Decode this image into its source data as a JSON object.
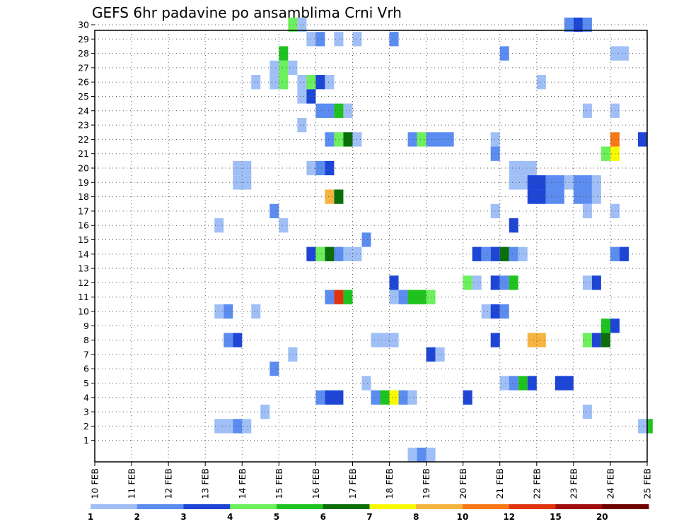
{
  "chart_data": {
    "type": "heatmap",
    "title": "GEFS 6hr padavine po ansamblima Crni Vrh",
    "xlabel": "",
    "ylabel": "",
    "x_ticks": [
      "10 FEB",
      "11 FEB",
      "12 FEB",
      "13 FEB",
      "14 FEB",
      "15 FEB",
      "16 FEB",
      "17 FEB",
      "18 FEB",
      "19 FEB",
      "20 FEB",
      "21 FEB",
      "22 FEB",
      "23 FEB",
      "24 FEB",
      "25 FEB"
    ],
    "y_ticks": [
      "1",
      "2",
      "3",
      "4",
      "5",
      "6",
      "7",
      "8",
      "9",
      "10",
      "11",
      "12",
      "13",
      "14",
      "15",
      "16",
      "17",
      "18",
      "19",
      "20",
      "21",
      "22",
      "23",
      "24",
      "25",
      "26",
      "27",
      "28",
      "29",
      "30"
    ],
    "x_range_days": [
      0,
      15
    ],
    "y_range": [
      0,
      30
    ],
    "grid": true,
    "legend": {
      "placement": "bottom",
      "labels": [
        "1",
        "2",
        "3",
        "4",
        "5",
        "6",
        "7",
        "8",
        "10",
        "12",
        "15",
        "20"
      ],
      "colors": [
        "#a0bff7",
        "#5b8cf0",
        "#1e46d6",
        "#6cf05c",
        "#1fc31f",
        "#0b6e0b",
        "#f8f800",
        "#f8b440",
        "#f87818",
        "#e0340f",
        "#a00c0c",
        "#6e0000"
      ]
    },
    "level_colors": {
      "1": "#a0bff7",
      "2": "#5b8cf0",
      "3": "#1e46d6",
      "4": "#6cf05c",
      "5": "#1fc31f",
      "6": "#0b6e0b",
      "7": "#f8f800",
      "8": "#f8b440",
      "9": "#f87818",
      "10": "#e0340f"
    },
    "cells": [
      {
        "y": 30,
        "x": 5.25,
        "w": 0.25,
        "l": 4
      },
      {
        "y": 30,
        "x": 5.5,
        "w": 0.25,
        "l": 1
      },
      {
        "y": 30,
        "x": 12.75,
        "w": 0.25,
        "l": 2
      },
      {
        "y": 30,
        "x": 13.0,
        "w": 0.25,
        "l": 3
      },
      {
        "y": 30,
        "x": 13.25,
        "w": 0.25,
        "l": 2
      },
      {
        "y": 29,
        "x": 5.75,
        "w": 0.25,
        "l": 1
      },
      {
        "y": 29,
        "x": 6.0,
        "w": 0.25,
        "l": 2
      },
      {
        "y": 29,
        "x": 6.5,
        "w": 0.25,
        "l": 1
      },
      {
        "y": 29,
        "x": 7.0,
        "w": 0.25,
        "l": 1
      },
      {
        "y": 29,
        "x": 8.0,
        "w": 0.25,
        "l": 2
      },
      {
        "y": 28,
        "x": 5.0,
        "w": 0.25,
        "l": 5
      },
      {
        "y": 28,
        "x": 11.0,
        "w": 0.25,
        "l": 2
      },
      {
        "y": 28,
        "x": 14.0,
        "w": 0.5,
        "l": 1
      },
      {
        "y": 27,
        "x": 4.75,
        "w": 0.25,
        "l": 1
      },
      {
        "y": 27,
        "x": 5.0,
        "w": 0.25,
        "l": 4
      },
      {
        "y": 27,
        "x": 5.25,
        "w": 0.25,
        "l": 1
      },
      {
        "y": 26,
        "x": 4.25,
        "w": 0.25,
        "l": 1
      },
      {
        "y": 26,
        "x": 4.75,
        "w": 0.25,
        "l": 1
      },
      {
        "y": 26,
        "x": 5.0,
        "w": 0.25,
        "l": 4
      },
      {
        "y": 26,
        "x": 5.5,
        "w": 0.25,
        "l": 1
      },
      {
        "y": 26,
        "x": 5.75,
        "w": 0.25,
        "l": 4
      },
      {
        "y": 26,
        "x": 6.0,
        "w": 0.25,
        "l": 3
      },
      {
        "y": 26,
        "x": 6.25,
        "w": 0.25,
        "l": 1
      },
      {
        "y": 26,
        "x": 12.0,
        "w": 0.25,
        "l": 1
      },
      {
        "y": 25,
        "x": 5.5,
        "w": 0.25,
        "l": 1
      },
      {
        "y": 25,
        "x": 5.75,
        "w": 0.25,
        "l": 3
      },
      {
        "y": 24,
        "x": 6.0,
        "w": 0.5,
        "l": 2
      },
      {
        "y": 24,
        "x": 6.5,
        "w": 0.25,
        "l": 5
      },
      {
        "y": 24,
        "x": 6.75,
        "w": 0.25,
        "l": 1
      },
      {
        "y": 24,
        "x": 13.25,
        "w": 0.25,
        "l": 1
      },
      {
        "y": 24,
        "x": 14.0,
        "w": 0.25,
        "l": 1
      },
      {
        "y": 23,
        "x": 5.5,
        "w": 0.25,
        "l": 1
      },
      {
        "y": 22,
        "x": 6.25,
        "w": 0.25,
        "l": 2
      },
      {
        "y": 22,
        "x": 6.5,
        "w": 0.25,
        "l": 4
      },
      {
        "y": 22,
        "x": 6.75,
        "w": 0.25,
        "l": 6
      },
      {
        "y": 22,
        "x": 7.0,
        "w": 0.25,
        "l": 1
      },
      {
        "y": 22,
        "x": 8.5,
        "w": 0.25,
        "l": 2
      },
      {
        "y": 22,
        "x": 8.75,
        "w": 0.25,
        "l": 4
      },
      {
        "y": 22,
        "x": 9.0,
        "w": 0.75,
        "l": 2
      },
      {
        "y": 22,
        "x": 10.75,
        "w": 0.25,
        "l": 1
      },
      {
        "y": 22,
        "x": 14.0,
        "w": 0.25,
        "l": 9
      },
      {
        "y": 22,
        "x": 14.75,
        "w": 0.25,
        "l": 3
      },
      {
        "y": 21,
        "x": 10.75,
        "w": 0.25,
        "l": 2
      },
      {
        "y": 21,
        "x": 13.75,
        "w": 0.25,
        "l": 4
      },
      {
        "y": 21,
        "x": 14.0,
        "w": 0.25,
        "l": 7
      },
      {
        "y": 20,
        "x": 3.75,
        "w": 0.5,
        "l": 1
      },
      {
        "y": 20,
        "x": 5.75,
        "w": 0.25,
        "l": 1
      },
      {
        "y": 20,
        "x": 6.0,
        "w": 0.25,
        "l": 2
      },
      {
        "y": 20,
        "x": 6.25,
        "w": 0.25,
        "l": 3
      },
      {
        "y": 20,
        "x": 11.25,
        "w": 0.75,
        "l": 1
      },
      {
        "y": 19,
        "x": 3.75,
        "w": 0.5,
        "l": 1
      },
      {
        "y": 19,
        "x": 11.25,
        "w": 0.75,
        "l": 1
      },
      {
        "y": 19,
        "x": 11.75,
        "w": 0.5,
        "l": 3
      },
      {
        "y": 19,
        "x": 12.25,
        "w": 0.5,
        "l": 2
      },
      {
        "y": 19,
        "x": 12.75,
        "w": 0.25,
        "l": 1
      },
      {
        "y": 19,
        "x": 13.0,
        "w": 0.5,
        "l": 2
      },
      {
        "y": 19,
        "x": 13.5,
        "w": 0.25,
        "l": 1
      },
      {
        "y": 18,
        "x": 6.25,
        "w": 0.25,
        "l": 8
      },
      {
        "y": 18,
        "x": 6.5,
        "w": 0.25,
        "l": 6
      },
      {
        "y": 18,
        "x": 11.75,
        "w": 0.5,
        "l": 3
      },
      {
        "y": 18,
        "x": 12.25,
        "w": 0.5,
        "l": 2
      },
      {
        "y": 18,
        "x": 13.0,
        "w": 0.5,
        "l": 2
      },
      {
        "y": 18,
        "x": 13.5,
        "w": 0.25,
        "l": 1
      },
      {
        "y": 17,
        "x": 4.75,
        "w": 0.25,
        "l": 2
      },
      {
        "y": 17,
        "x": 10.75,
        "w": 0.25,
        "l": 1
      },
      {
        "y": 17,
        "x": 13.25,
        "w": 0.25,
        "l": 1
      },
      {
        "y": 17,
        "x": 14.0,
        "w": 0.25,
        "l": 1
      },
      {
        "y": 16,
        "x": 3.25,
        "w": 0.25,
        "l": 1
      },
      {
        "y": 16,
        "x": 5.0,
        "w": 0.25,
        "l": 1
      },
      {
        "y": 16,
        "x": 11.25,
        "w": 0.25,
        "l": 3
      },
      {
        "y": 15,
        "x": 7.25,
        "w": 0.25,
        "l": 2
      },
      {
        "y": 14,
        "x": 5.75,
        "w": 0.25,
        "l": 3
      },
      {
        "y": 14,
        "x": 6.0,
        "w": 0.25,
        "l": 4
      },
      {
        "y": 14,
        "x": 6.25,
        "w": 0.25,
        "l": 6
      },
      {
        "y": 14,
        "x": 6.5,
        "w": 0.25,
        "l": 2
      },
      {
        "y": 14,
        "x": 6.75,
        "w": 0.5,
        "l": 1
      },
      {
        "y": 14,
        "x": 10.25,
        "w": 0.25,
        "l": 3
      },
      {
        "y": 14,
        "x": 10.5,
        "w": 0.25,
        "l": 2
      },
      {
        "y": 14,
        "x": 10.75,
        "w": 0.25,
        "l": 3
      },
      {
        "y": 14,
        "x": 11.0,
        "w": 0.25,
        "l": 6
      },
      {
        "y": 14,
        "x": 11.25,
        "w": 0.25,
        "l": 2
      },
      {
        "y": 14,
        "x": 11.5,
        "w": 0.25,
        "l": 1
      },
      {
        "y": 14,
        "x": 14.0,
        "w": 0.25,
        "l": 2
      },
      {
        "y": 14,
        "x": 14.25,
        "w": 0.25,
        "l": 3
      },
      {
        "y": 12,
        "x": 8.0,
        "w": 0.25,
        "l": 3
      },
      {
        "y": 12,
        "x": 10.0,
        "w": 0.25,
        "l": 4
      },
      {
        "y": 12,
        "x": 10.25,
        "w": 0.25,
        "l": 1
      },
      {
        "y": 12,
        "x": 10.75,
        "w": 0.25,
        "l": 3
      },
      {
        "y": 12,
        "x": 11.0,
        "w": 0.25,
        "l": 2
      },
      {
        "y": 12,
        "x": 11.25,
        "w": 0.25,
        "l": 5
      },
      {
        "y": 12,
        "x": 13.25,
        "w": 0.25,
        "l": 1
      },
      {
        "y": 12,
        "x": 13.5,
        "w": 0.25,
        "l": 3
      },
      {
        "y": 11,
        "x": 6.25,
        "w": 0.25,
        "l": 2
      },
      {
        "y": 11,
        "x": 6.5,
        "w": 0.25,
        "l": 10
      },
      {
        "y": 11,
        "x": 6.75,
        "w": 0.25,
        "l": 5
      },
      {
        "y": 11,
        "x": 8.0,
        "w": 0.25,
        "l": 1
      },
      {
        "y": 11,
        "x": 8.25,
        "w": 0.25,
        "l": 2
      },
      {
        "y": 11,
        "x": 8.5,
        "w": 0.5,
        "l": 5
      },
      {
        "y": 11,
        "x": 9.0,
        "w": 0.25,
        "l": 4
      },
      {
        "y": 10,
        "x": 3.25,
        "w": 0.25,
        "l": 1
      },
      {
        "y": 10,
        "x": 3.5,
        "w": 0.25,
        "l": 2
      },
      {
        "y": 10,
        "x": 4.25,
        "w": 0.25,
        "l": 1
      },
      {
        "y": 10,
        "x": 10.5,
        "w": 0.25,
        "l": 1
      },
      {
        "y": 10,
        "x": 10.75,
        "w": 0.25,
        "l": 3
      },
      {
        "y": 10,
        "x": 11.0,
        "w": 0.25,
        "l": 2
      },
      {
        "y": 9,
        "x": 13.75,
        "w": 0.25,
        "l": 5
      },
      {
        "y": 9,
        "x": 14.0,
        "w": 0.25,
        "l": 3
      },
      {
        "y": 8,
        "x": 3.5,
        "w": 0.25,
        "l": 2
      },
      {
        "y": 8,
        "x": 3.75,
        "w": 0.25,
        "l": 3
      },
      {
        "y": 8,
        "x": 7.5,
        "w": 0.75,
        "l": 1
      },
      {
        "y": 8,
        "x": 10.75,
        "w": 0.25,
        "l": 3
      },
      {
        "y": 8,
        "x": 11.75,
        "w": 0.5,
        "l": 8
      },
      {
        "y": 8,
        "x": 13.25,
        "w": 0.25,
        "l": 4
      },
      {
        "y": 8,
        "x": 13.5,
        "w": 0.25,
        "l": 3
      },
      {
        "y": 8,
        "x": 13.75,
        "w": 0.25,
        "l": 6
      },
      {
        "y": 7,
        "x": 5.25,
        "w": 0.25,
        "l": 1
      },
      {
        "y": 7,
        "x": 9.0,
        "w": 0.25,
        "l": 3
      },
      {
        "y": 7,
        "x": 9.25,
        "w": 0.25,
        "l": 1
      },
      {
        "y": 6,
        "x": 4.75,
        "w": 0.25,
        "l": 2
      },
      {
        "y": 5,
        "x": 7.25,
        "w": 0.25,
        "l": 1
      },
      {
        "y": 5,
        "x": 11.0,
        "w": 0.25,
        "l": 1
      },
      {
        "y": 5,
        "x": 11.25,
        "w": 0.25,
        "l": 2
      },
      {
        "y": 5,
        "x": 11.5,
        "w": 0.25,
        "l": 5
      },
      {
        "y": 5,
        "x": 11.75,
        "w": 0.25,
        "l": 3
      },
      {
        "y": 5,
        "x": 12.5,
        "w": 0.5,
        "l": 3
      },
      {
        "y": 4,
        "x": 6.0,
        "w": 0.25,
        "l": 2
      },
      {
        "y": 4,
        "x": 6.25,
        "w": 0.5,
        "l": 3
      },
      {
        "y": 4,
        "x": 7.5,
        "w": 0.25,
        "l": 2
      },
      {
        "y": 4,
        "x": 7.75,
        "w": 0.25,
        "l": 5
      },
      {
        "y": 4,
        "x": 8.0,
        "w": 0.25,
        "l": 7
      },
      {
        "y": 4,
        "x": 8.25,
        "w": 0.25,
        "l": 2
      },
      {
        "y": 4,
        "x": 8.5,
        "w": 0.25,
        "l": 1
      },
      {
        "y": 4,
        "x": 10.0,
        "w": 0.25,
        "l": 3
      },
      {
        "y": 3,
        "x": 4.5,
        "w": 0.25,
        "l": 1
      },
      {
        "y": 3,
        "x": 13.25,
        "w": 0.25,
        "l": 1
      },
      {
        "y": 2,
        "x": 3.25,
        "w": 0.5,
        "l": 1
      },
      {
        "y": 2,
        "x": 3.75,
        "w": 0.25,
        "l": 2
      },
      {
        "y": 2,
        "x": 4.0,
        "w": 0.25,
        "l": 1
      },
      {
        "y": 2,
        "x": 14.75,
        "w": 0.25,
        "l": 1
      },
      {
        "y": 2,
        "x": 15.0,
        "w": 0.15,
        "l": 5
      },
      {
        "y": 0,
        "x": 8.5,
        "w": 0.25,
        "l": 1
      },
      {
        "y": 0,
        "x": 8.75,
        "w": 0.25,
        "l": 2
      },
      {
        "y": 0,
        "x": 9.0,
        "w": 0.25,
        "l": 1
      }
    ]
  }
}
